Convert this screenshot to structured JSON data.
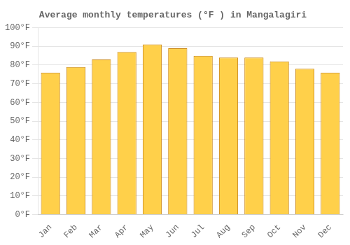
{
  "chart_data": {
    "type": "bar",
    "title": "Average monthly temperatures (°F ) in Mangalagiri",
    "categories": [
      "Jan",
      "Feb",
      "Mar",
      "Apr",
      "May",
      "Jun",
      "Jul",
      "Aug",
      "Sep",
      "Oct",
      "Nov",
      "Dec"
    ],
    "values": [
      76,
      79,
      83,
      87,
      91,
      89,
      85,
      84,
      84,
      82,
      78,
      76
    ],
    "color": "#FFD04A",
    "ylim": [
      0,
      100
    ],
    "yticks": [
      {
        "value": 0,
        "label": "0°F"
      },
      {
        "value": 10,
        "label": "10°F"
      },
      {
        "value": 20,
        "label": "20°F"
      },
      {
        "value": 30,
        "label": "30°F"
      },
      {
        "value": 40,
        "label": "40°F"
      },
      {
        "value": 50,
        "label": "50°F"
      },
      {
        "value": 60,
        "label": "60°F"
      },
      {
        "value": 70,
        "label": "70°F"
      },
      {
        "value": 80,
        "label": "80°F"
      },
      {
        "value": 90,
        "label": "90°F"
      },
      {
        "value": 100,
        "label": "100°F"
      }
    ],
    "grid": true
  }
}
